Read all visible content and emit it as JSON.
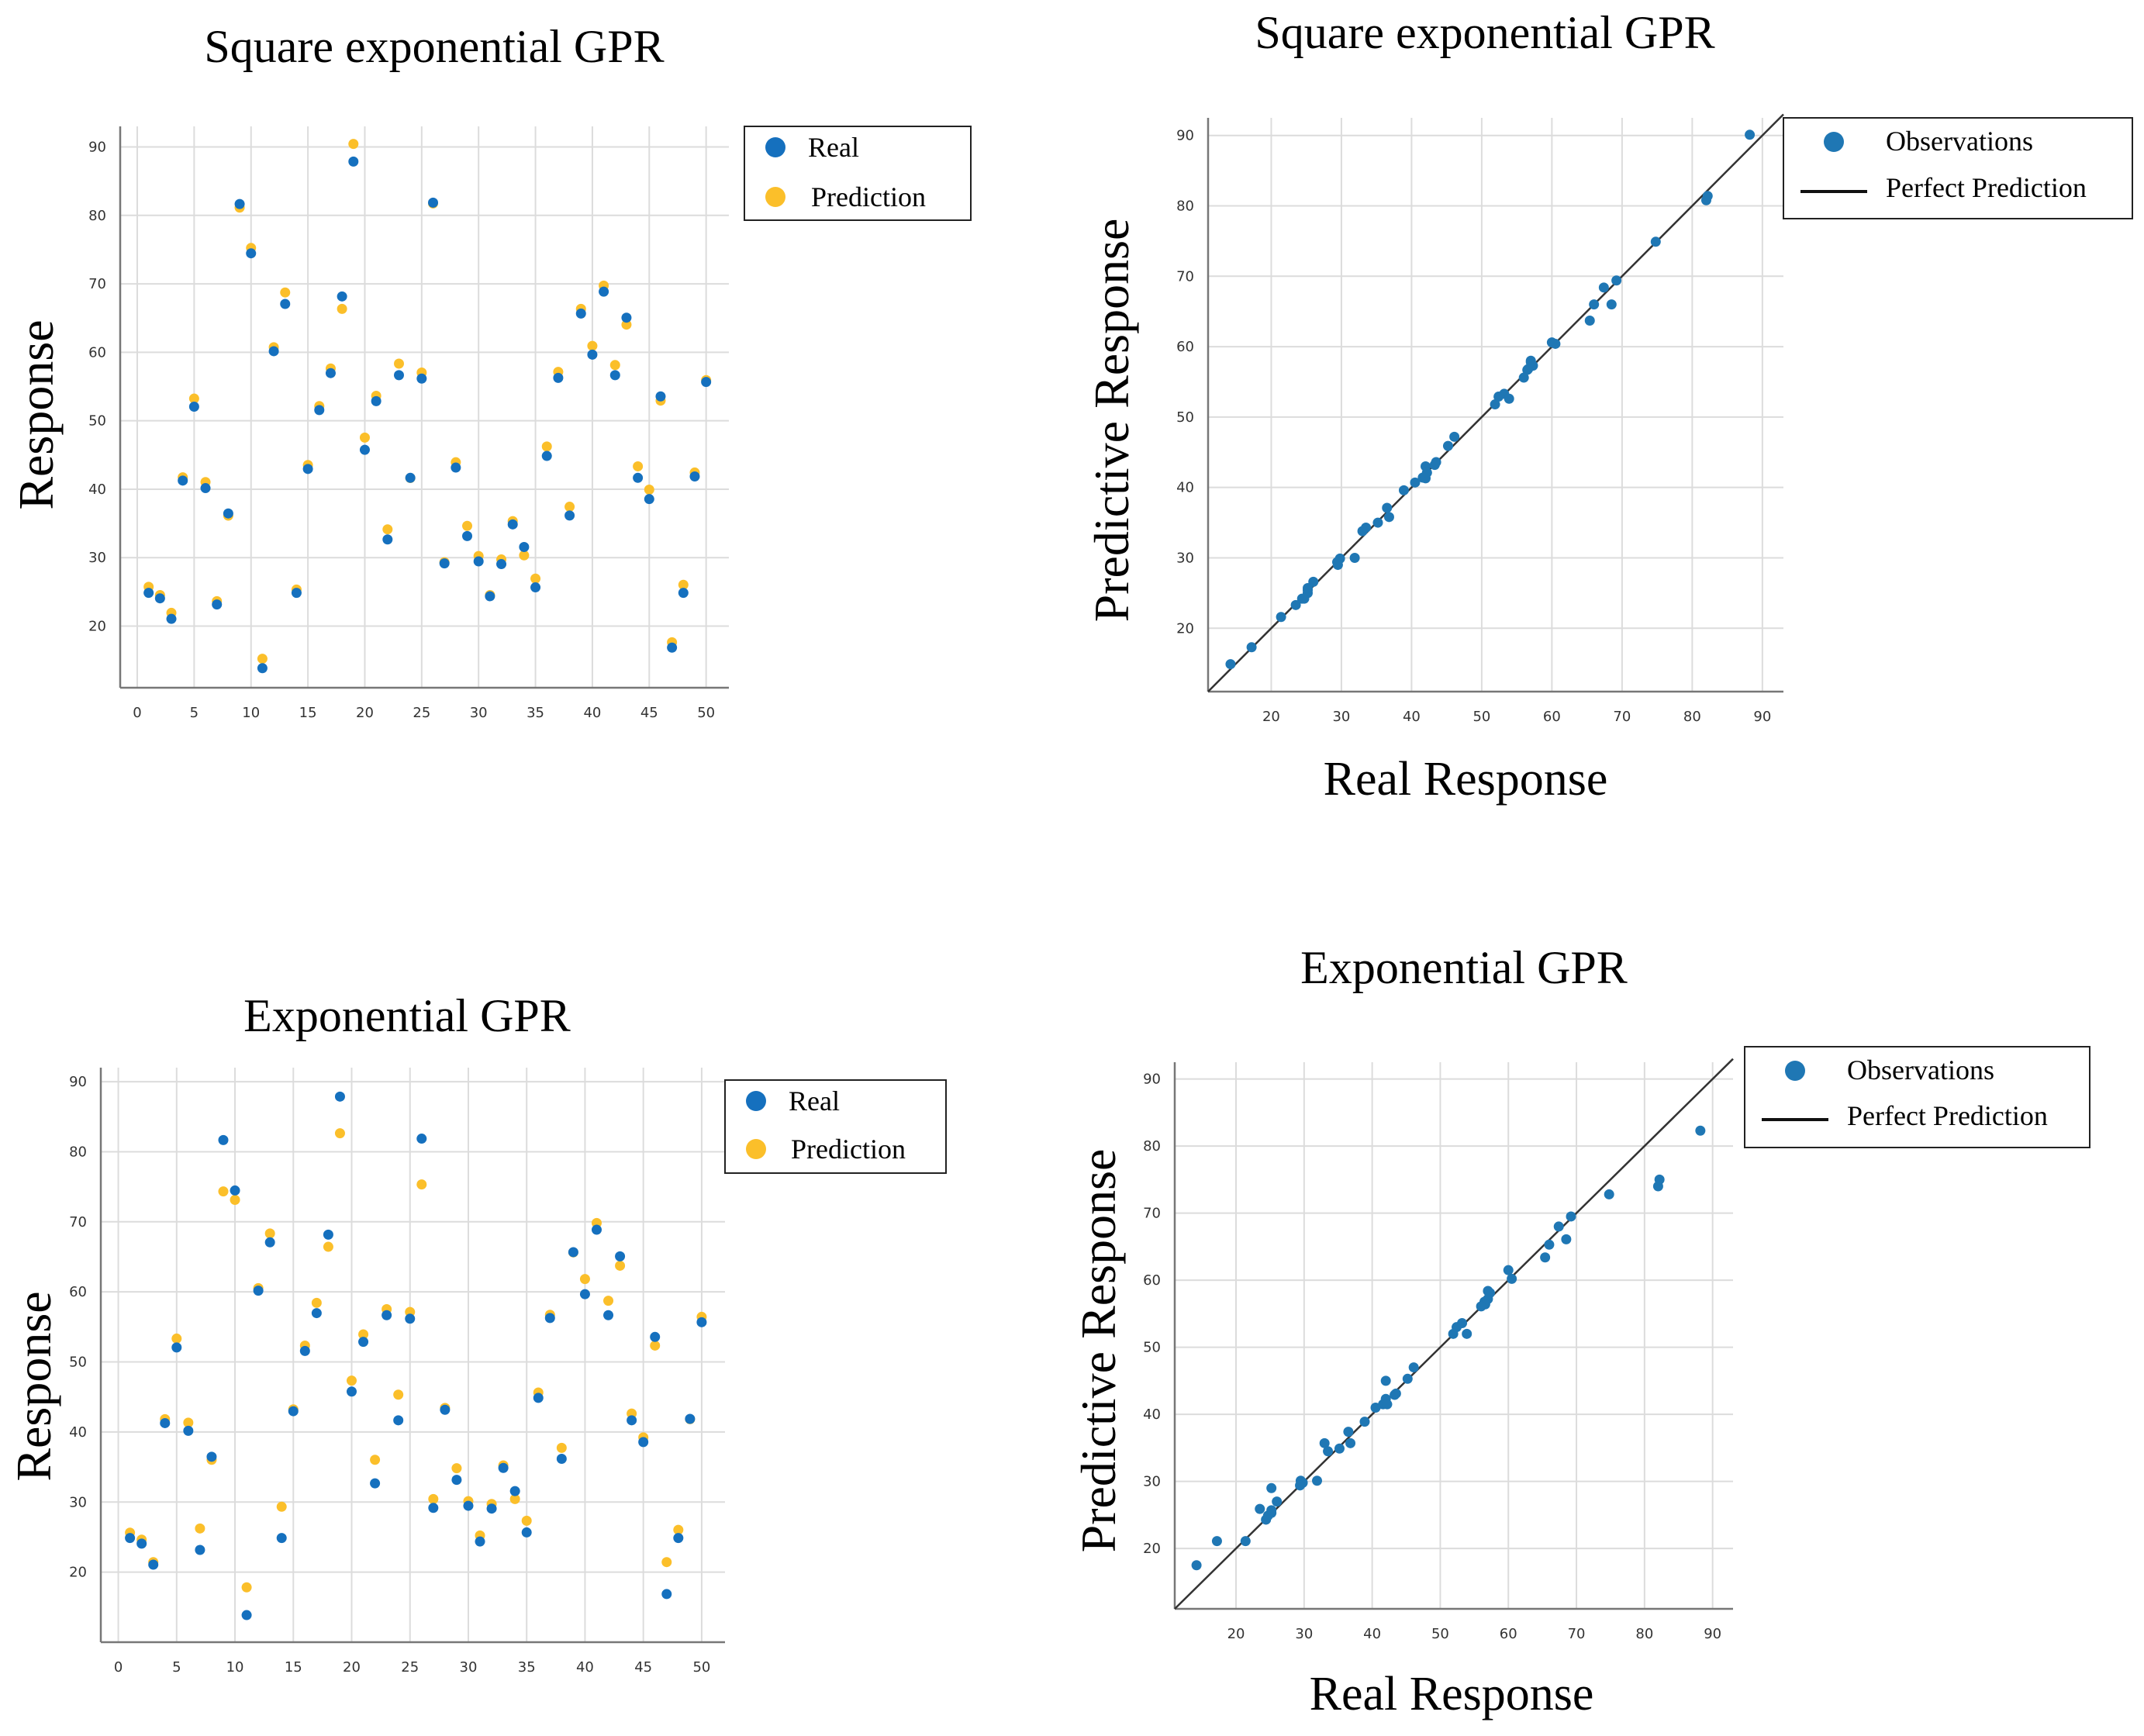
{
  "colors": {
    "real": "#1570be",
    "prediction": "#fbbf2a",
    "observation": "#1f77b4",
    "line": "#333333",
    "grid": "#dcdcdc"
  },
  "chart_data": [
    {
      "id": "se-series",
      "type": "scatter",
      "title": "Square exponential GPR",
      "xlabel": "",
      "ylabel": "Response",
      "xlim": [
        -1.5,
        52
      ],
      "ylim": [
        11,
        93
      ],
      "xticks": [
        0,
        5,
        10,
        15,
        20,
        25,
        30,
        35,
        40,
        45,
        50
      ],
      "yticks": [
        20,
        30,
        40,
        50,
        60,
        70,
        80,
        90
      ],
      "grid": true,
      "legend": "top-right",
      "series": [
        {
          "name": "Real",
          "color": "#1570be",
          "x": [
            1,
            2,
            3,
            4,
            5,
            6,
            7,
            8,
            9,
            10,
            11,
            12,
            13,
            14,
            15,
            16,
            17,
            18,
            19,
            20,
            21,
            22,
            23,
            24,
            25,
            26,
            27,
            28,
            29,
            30,
            31,
            32,
            33,
            34,
            35,
            36,
            37,
            38,
            39,
            40,
            41,
            42,
            43,
            44,
            45,
            46,
            47,
            48,
            49,
            50
          ],
          "y": [
            25.2,
            24.4,
            21.4,
            41.6,
            52.4,
            40.5,
            23.5,
            36.8,
            82,
            74.8,
            14.2,
            60.5,
            67.4,
            25.2,
            43.3,
            51.9,
            57.3,
            68.5,
            88.2,
            46.1,
            53.2,
            33,
            57,
            42,
            56.5,
            82.2,
            29.5,
            43.5,
            33.5,
            29.8,
            24.7,
            29.4,
            35.2,
            31.9,
            26,
            45.2,
            56.6,
            36.5,
            66,
            60,
            69.2,
            57,
            65.4,
            42,
            38.9,
            53.9,
            17.2,
            25.2,
            42.2,
            56
          ]
        },
        {
          "name": "Prediction",
          "color": "#fbbf2a",
          "x": [
            1,
            2,
            3,
            4,
            5,
            6,
            7,
            8,
            9,
            10,
            11,
            12,
            13,
            14,
            15,
            16,
            17,
            18,
            19,
            20,
            21,
            22,
            23,
            24,
            25,
            26,
            27,
            28,
            29,
            30,
            31,
            32,
            33,
            34,
            35,
            36,
            37,
            38,
            39,
            40,
            41,
            42,
            43,
            44,
            45,
            46,
            47,
            48,
            49,
            50
          ],
          "y": [
            25.4,
            24.2,
            21.6,
            41.4,
            52.9,
            40.7,
            23.3,
            35.8,
            80.8,
            74.9,
            14.9,
            60.4,
            68.4,
            25,
            43.2,
            51.8,
            57.3,
            66,
            90.1,
            47.2,
            53.3,
            33.8,
            58,
            41.3,
            56.7,
            81.4,
            29,
            43.6,
            34.3,
            29.9,
            24.2,
            29.4,
            35,
            30,
            26.6,
            45.9,
            56.8,
            37.1,
            66,
            60.6,
            69.4,
            57.8,
            63.7,
            43,
            39.6,
            52.6,
            17.3,
            25.7,
            42.1,
            55.6
          ]
        }
      ]
    },
    {
      "id": "se-parity",
      "type": "scatter",
      "title": "Square exponential GPR",
      "xlabel": "Real Response",
      "ylabel": "Predictive Response",
      "xlim": [
        11,
        93
      ],
      "ylim": [
        11,
        92.5
      ],
      "xticks": [
        20,
        30,
        40,
        50,
        60,
        70,
        80,
        90
      ],
      "yticks": [
        20,
        30,
        40,
        50,
        60,
        70,
        80,
        90
      ],
      "grid": true,
      "legend": "top-right",
      "series": [
        {
          "name": "Observations",
          "color": "#1f77b4",
          "x": [
            25.2,
            24.4,
            21.4,
            41.6,
            52.4,
            40.5,
            23.5,
            36.8,
            82,
            74.8,
            14.2,
            60.5,
            67.4,
            25.2,
            43.3,
            51.9,
            57.3,
            68.5,
            88.2,
            46.1,
            53.2,
            33,
            57,
            42,
            56.5,
            82.2,
            29.5,
            43.5,
            33.5,
            29.8,
            24.7,
            29.4,
            35.2,
            31.9,
            26,
            45.2,
            56.6,
            36.5,
            66,
            60,
            69.2,
            57,
            65.4,
            42,
            38.9,
            53.9,
            17.2,
            25.2,
            42.2,
            56
          ],
          "y": [
            25.4,
            24.2,
            21.6,
            41.4,
            52.9,
            40.7,
            23.3,
            35.8,
            80.8,
            74.9,
            14.9,
            60.4,
            68.4,
            25,
            43.2,
            51.8,
            57.3,
            66,
            90.1,
            47.2,
            53.3,
            33.8,
            58,
            41.3,
            56.7,
            81.4,
            29,
            43.6,
            34.3,
            29.9,
            24.2,
            29.4,
            35,
            30,
            26.6,
            45.9,
            56.8,
            37.1,
            66,
            60.6,
            69.4,
            57.8,
            63.7,
            43,
            39.6,
            52.6,
            17.3,
            25.7,
            42.1,
            55.6
          ]
        },
        {
          "name": "Perfect Prediction",
          "type": "line",
          "color": "#333333",
          "x": [
            11,
            93
          ],
          "y": [
            11,
            93
          ]
        }
      ]
    },
    {
      "id": "exp-series",
      "type": "scatter",
      "title": "Exponential GPR",
      "xlabel": "",
      "ylabel": "Response",
      "xlim": [
        -1.5,
        52
      ],
      "ylim": [
        10,
        92
      ],
      "xticks": [
        0,
        5,
        10,
        15,
        20,
        25,
        30,
        35,
        40,
        45,
        50
      ],
      "yticks": [
        20,
        30,
        40,
        50,
        60,
        70,
        80,
        90
      ],
      "grid": true,
      "legend": "top-right",
      "series": [
        {
          "name": "Real",
          "color": "#1570be",
          "x": [
            1,
            2,
            3,
            4,
            5,
            6,
            7,
            8,
            9,
            10,
            11,
            12,
            13,
            14,
            15,
            16,
            17,
            18,
            19,
            20,
            21,
            22,
            23,
            24,
            25,
            26,
            27,
            28,
            29,
            30,
            31,
            32,
            33,
            34,
            35,
            36,
            37,
            38,
            39,
            40,
            41,
            42,
            43,
            44,
            45,
            46,
            47,
            48,
            49,
            50
          ],
          "y": [
            25.2,
            24.4,
            21.4,
            41.6,
            52.4,
            40.5,
            23.5,
            36.8,
            82,
            74.8,
            14.2,
            60.5,
            67.4,
            25.2,
            43.3,
            51.9,
            57.3,
            68.5,
            88.2,
            46.1,
            53.2,
            33,
            57,
            42,
            56.5,
            82.2,
            29.5,
            43.5,
            33.5,
            29.8,
            24.7,
            29.4,
            35.2,
            31.9,
            26,
            45.2,
            56.6,
            36.5,
            66,
            60,
            69.2,
            57,
            65.4,
            42,
            38.9,
            53.9,
            17.2,
            25.2,
            42.2,
            56
          ]
        },
        {
          "name": "Prediction",
          "color": "#fbbf2a",
          "x": [
            1,
            2,
            3,
            4,
            5,
            6,
            7,
            8,
            9,
            10,
            11,
            12,
            13,
            14,
            15,
            16,
            17,
            18,
            19,
            20,
            21,
            22,
            23,
            24,
            25,
            26,
            27,
            28,
            29,
            30,
            31,
            32,
            33,
            34,
            35,
            36,
            37,
            38,
            39,
            40,
            41,
            42,
            43,
            44,
            45,
            46,
            47,
            48,
            49,
            50
          ],
          "y": [
            25.3,
            24.3,
            21.1,
            41.5,
            53,
            41,
            25.9,
            35.7,
            74,
            72.8,
            17.5,
            60.2,
            68,
            29,
            42.9,
            52,
            58.1,
            66.1,
            82.3,
            47,
            53.6,
            35.7,
            57.2,
            45,
            56.8,
            75,
            30.1,
            43.1,
            34.5,
            29.8,
            24.9,
            29.4,
            34.9,
            30.1,
            27,
            45.3,
            56.4,
            37.4,
            65.3,
            61.5,
            69.5,
            58.4,
            63.4,
            42.3,
            38.9,
            52,
            21.1,
            25.7,
            41.5,
            56.1
          ]
        }
      ]
    },
    {
      "id": "exp-parity",
      "type": "scatter",
      "title": "Exponential GPR",
      "xlabel": "Real Response",
      "ylabel": "Predictive Response",
      "xlim": [
        11,
        93
      ],
      "ylim": [
        11,
        92.5
      ],
      "xticks": [
        20,
        30,
        40,
        50,
        60,
        70,
        80,
        90
      ],
      "yticks": [
        20,
        30,
        40,
        50,
        60,
        70,
        80,
        90
      ],
      "grid": true,
      "legend": "top-right",
      "series": [
        {
          "name": "Observations",
          "color": "#1f77b4",
          "x": [
            25.2,
            24.4,
            21.4,
            41.6,
            52.4,
            40.5,
            23.5,
            36.8,
            82,
            74.8,
            14.2,
            60.5,
            67.4,
            25.2,
            43.3,
            51.9,
            57.3,
            68.5,
            88.2,
            46.1,
            53.2,
            33,
            57,
            42,
            56.5,
            82.2,
            29.5,
            43.5,
            33.5,
            29.8,
            24.7,
            29.4,
            35.2,
            31.9,
            26,
            45.2,
            56.6,
            36.5,
            66,
            60,
            69.2,
            57,
            65.4,
            42,
            38.9,
            53.9,
            17.2,
            25.2,
            42.2,
            56
          ],
          "y": [
            25.3,
            24.3,
            21.1,
            41.5,
            53,
            41,
            25.9,
            35.7,
            74,
            72.8,
            17.5,
            60.2,
            68,
            29,
            42.9,
            52,
            58.1,
            66.1,
            82.3,
            47,
            53.6,
            35.7,
            57.2,
            45,
            56.8,
            75,
            30.1,
            43.1,
            34.5,
            29.8,
            24.9,
            29.4,
            34.9,
            30.1,
            27,
            45.3,
            56.4,
            37.4,
            65.3,
            61.5,
            69.5,
            58.4,
            63.4,
            42.3,
            38.9,
            52,
            21.1,
            25.7,
            41.5,
            56.1
          ]
        },
        {
          "name": "Perfect Prediction",
          "type": "line",
          "color": "#333333",
          "x": [
            11,
            93
          ],
          "y": [
            11,
            93
          ]
        }
      ]
    }
  ]
}
